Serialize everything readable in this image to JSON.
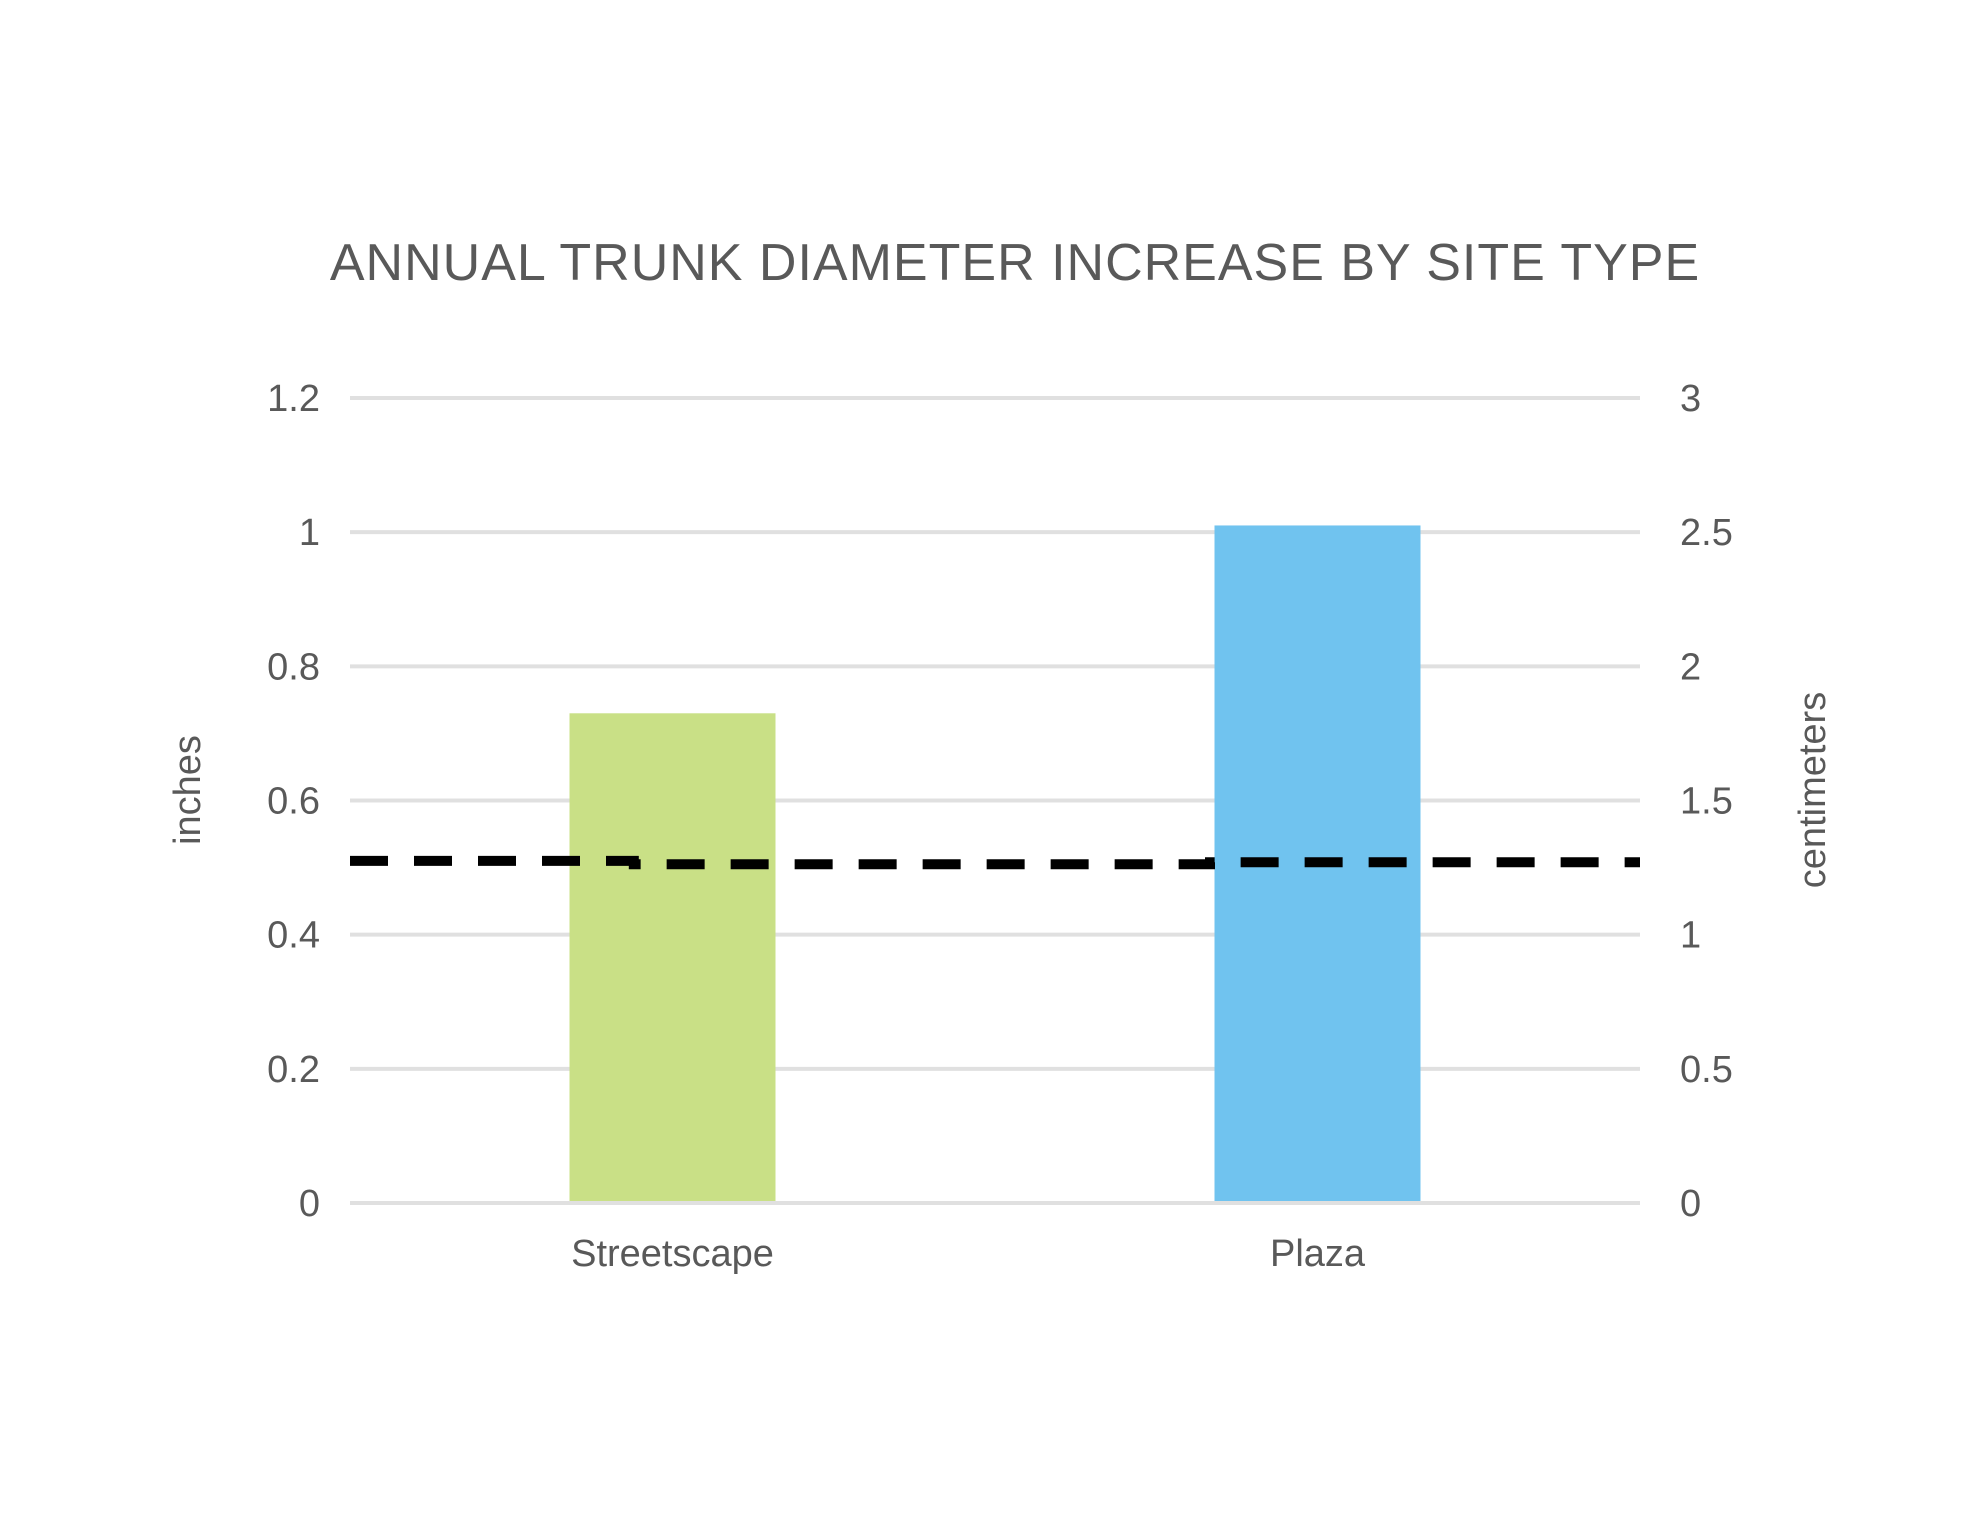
{
  "chart_data": {
    "type": "bar",
    "title": "ANNUAL TRUNK DIAMETER INCREASE BY SITE TYPE",
    "categories": [
      "Streetscape",
      "Plaza"
    ],
    "values": [
      0.73,
      1.01
    ],
    "bar_colors": [
      "#c9e086",
      "#70c3ef"
    ],
    "ylabel": "inches",
    "ylim": [
      0,
      1.2
    ],
    "y_ticks": [
      0,
      0.2,
      0.4,
      0.6,
      0.8,
      1,
      1.2
    ],
    "y_tick_labels": [
      "0",
      "0.2",
      "0.4",
      "0.6",
      "0.8",
      "1",
      "1.2"
    ],
    "y2label": "centimeters",
    "y2lim": [
      0,
      3
    ],
    "y2_ticks": [
      0,
      0.5,
      1,
      1.5,
      2,
      2.5,
      3
    ],
    "y2_tick_labels": [
      "0",
      "0.5",
      "1",
      "1.5",
      "2",
      "2.5",
      "3"
    ],
    "grid": true,
    "reference_line": {
      "style": "dashed",
      "color": "#000000",
      "points": [
        {
          "x": 0,
          "y": 0.51
        },
        {
          "x": 0.33,
          "y": 0.51
        },
        {
          "x": 0.33,
          "y": 0.505
        },
        {
          "x": 1.0,
          "y": 0.505
        },
        {
          "x": 1.0,
          "y": 0.508
        },
        {
          "x": 1.5,
          "y": 0.508
        }
      ]
    }
  }
}
